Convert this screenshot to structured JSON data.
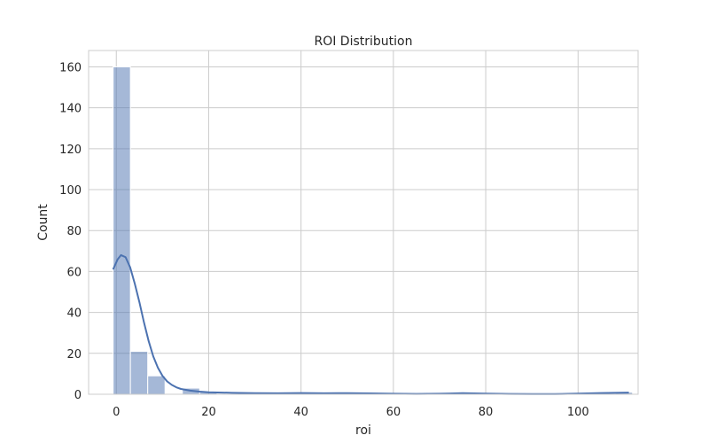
{
  "chart_data": {
    "type": "bar",
    "title": "ROI Distribution",
    "xlabel": "roi",
    "ylabel": "Count",
    "xlim": [
      -6,
      113
    ],
    "ylim": [
      0,
      168
    ],
    "xticks": [
      0,
      20,
      40,
      60,
      80,
      100
    ],
    "yticks": [
      0,
      20,
      40,
      60,
      80,
      100,
      120,
      140,
      160
    ],
    "grid": true,
    "bin_start": -0.7,
    "bin_width": 3.75,
    "values": [
      160,
      21,
      9,
      0,
      3,
      1,
      0,
      0,
      0,
      0,
      0,
      0,
      0,
      0,
      1,
      0,
      0,
      0,
      0,
      0,
      0,
      0,
      0,
      0,
      0,
      0,
      0,
      0,
      0,
      1
    ],
    "kde": {
      "x": [
        -0.7,
        0.3,
        1.0,
        2.0,
        3.0,
        4.0,
        5.0,
        6.0,
        7.0,
        8.0,
        9.0,
        10.0,
        11.0,
        12.0,
        13.0,
        14.0,
        16.0,
        18.0,
        20.0,
        25.0,
        30.0,
        35.0,
        40.0,
        45.0,
        50.0,
        55.0,
        60.0,
        65.0,
        70.0,
        75.0,
        80.0,
        85.0,
        90.0,
        95.0,
        100.0,
        105.0,
        111.0
      ],
      "y": [
        61,
        66,
        68,
        67,
        62,
        54,
        45,
        35,
        26,
        18.5,
        13,
        9,
        6.3,
        4.6,
        3.4,
        2.6,
        1.8,
        1.3,
        1.0,
        0.7,
        0.55,
        0.5,
        0.6,
        0.5,
        0.55,
        0.45,
        0.25,
        0.15,
        0.25,
        0.55,
        0.35,
        0.15,
        0.1,
        0.1,
        0.3,
        0.6,
        0.8
      ]
    },
    "colors": {
      "bar": "#4c72b0",
      "line": "#4c72b0",
      "grid": "#cccccc",
      "frame": "#cccccc"
    }
  }
}
